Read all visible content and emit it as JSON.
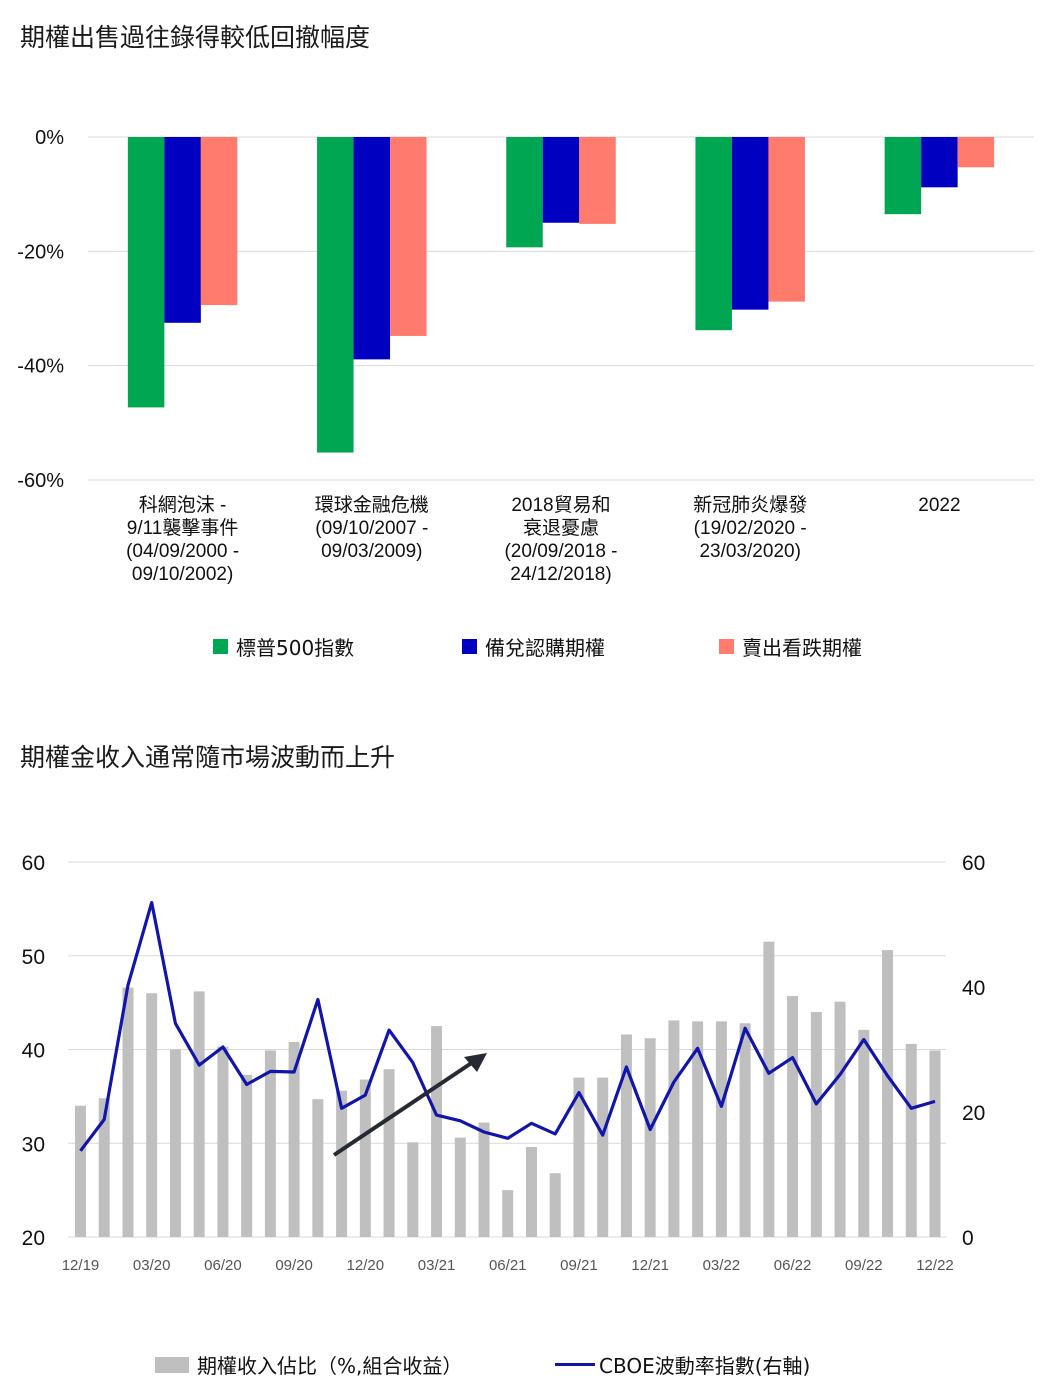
{
  "titles": {
    "chart1": "期權出售過往錄得較低回撤幅度",
    "chart2": "期權金收入通常隨市場波動而上升"
  },
  "colors": {
    "green": "#00A651",
    "blue": "#0000C0",
    "salmon": "#FF7B6E",
    "gray_bar": "#BFBFBF",
    "line": "#1216A8",
    "arrow": "#262A33",
    "grid": "#D9D9D9"
  },
  "chart_data": [
    {
      "type": "bar",
      "title": "期權出售過往錄得較低回撤幅度",
      "categories": [
        [
          "科網泡沫 -",
          "9/11襲擊事件",
          "(04/09/2000 -",
          "09/10/2002)"
        ],
        [
          "環球金融危機",
          "(09/10/2007 -",
          "09/03/2009)"
        ],
        [
          "2018貿易和",
          "衰退憂慮",
          "(20/09/2018 -",
          "24/12/2018)"
        ],
        [
          "新冠肺炎爆發",
          "(19/02/2020 -",
          "23/03/2020)"
        ],
        [
          "2022"
        ]
      ],
      "series": [
        {
          "name": "標普500指數",
          "values": [
            -47.3,
            -55.2,
            -19.3,
            -33.8,
            -13.5
          ]
        },
        {
          "name": "備兌認購期權",
          "values": [
            -32.5,
            -38.9,
            -15.0,
            -30.2,
            -8.8
          ]
        },
        {
          "name": "賣出看跌期權",
          "values": [
            -29.4,
            -34.8,
            -15.2,
            -28.8,
            -5.3
          ]
        }
      ],
      "ylim": [
        -60,
        0
      ],
      "yticks": [
        0,
        -20,
        -40,
        -60
      ],
      "ytick_labels": [
        "0%",
        "-20%",
        "-40%",
        "-60%"
      ],
      "legend": "bottom"
    },
    {
      "type": "bar",
      "title": "期權金收入通常隨市場波動而上升",
      "x": [
        "12/19",
        "01/20",
        "02/20",
        "03/20",
        "04/20",
        "05/20",
        "06/20",
        "07/20",
        "08/20",
        "09/20",
        "10/20",
        "11/20",
        "12/20",
        "01/21",
        "02/21",
        "03/21",
        "04/21",
        "05/21",
        "06/21",
        "07/21",
        "08/21",
        "09/21",
        "10/21",
        "11/21",
        "12/21",
        "01/22",
        "02/22",
        "03/22",
        "04/22",
        "05/22",
        "06/22",
        "07/22",
        "08/22",
        "09/22",
        "10/22",
        "11/22",
        "12/22"
      ],
      "xtick_labels": [
        "12/19",
        "03/20",
        "06/20",
        "09/20",
        "12/20",
        "03/21",
        "06/21",
        "09/21",
        "12/21",
        "03/22",
        "06/22",
        "09/22",
        "12/22"
      ],
      "series": [
        {
          "name": "期權收入佔比（%,組合收益）",
          "type": "bar",
          "axis": "left",
          "values": [
            34.0,
            34.8,
            46.6,
            46.0,
            40.0,
            46.2,
            40.3,
            37.3,
            39.9,
            40.8,
            34.7,
            35.6,
            36.8,
            37.9,
            30.1,
            42.5,
            30.6,
            32.2,
            25.0,
            29.6,
            26.8,
            37.0,
            37.0,
            41.6,
            41.2,
            43.1,
            43.0,
            43.0,
            42.8,
            51.5,
            45.7,
            44.0,
            45.1,
            42.1,
            50.6,
            40.6,
            39.9
          ]
        },
        {
          "name": "CBOE波動率指數(右軸)",
          "type": "line",
          "axis": "right",
          "values": [
            13.8,
            18.8,
            40.3,
            53.5,
            34.2,
            27.5,
            30.4,
            24.4,
            26.5,
            26.4,
            38.0,
            20.6,
            22.7,
            33.1,
            27.9,
            19.5,
            18.6,
            16.8,
            15.8,
            18.2,
            16.5,
            23.1,
            16.3,
            27.2,
            17.2,
            24.8,
            30.2,
            20.9,
            33.4,
            26.2,
            28.7,
            21.3,
            26.0,
            31.6,
            25.8,
            20.6,
            21.7
          ]
        }
      ],
      "ylim_left": [
        20,
        60
      ],
      "yticks_left": [
        20,
        30,
        40,
        50,
        60
      ],
      "ylim_right": [
        0,
        60
      ],
      "yticks_right": [
        0,
        20,
        40,
        60
      ],
      "legend": "bottom"
    }
  ]
}
